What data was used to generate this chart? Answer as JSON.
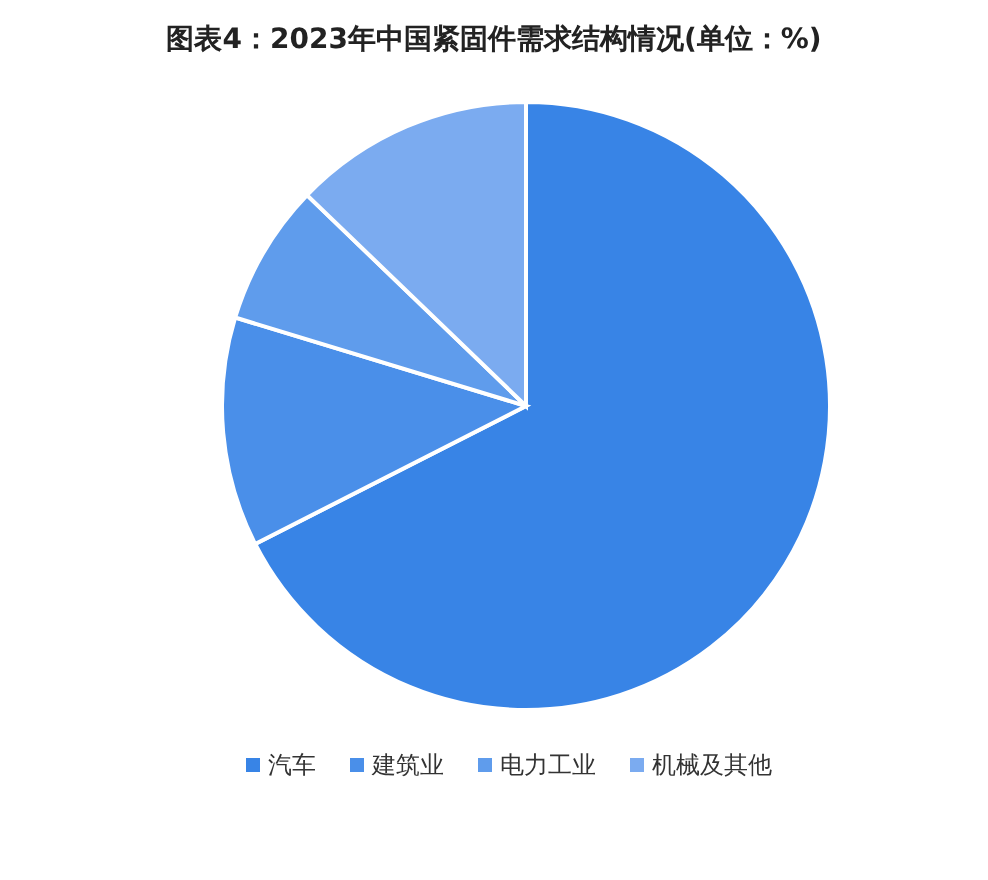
{
  "chart_data": {
    "type": "pie",
    "title": "图表4：2023年中国紧固件需求结构情况(单位：%)",
    "categories": [
      "汽车",
      "建筑业",
      "电力工业",
      "机械及其他"
    ],
    "values": [
      67.5,
      12.2,
      7.5,
      12.8
    ],
    "colors": [
      "#3884e6",
      "#4a8fe9",
      "#5f9cec",
      "#7babf0"
    ],
    "legend": "bottom"
  }
}
